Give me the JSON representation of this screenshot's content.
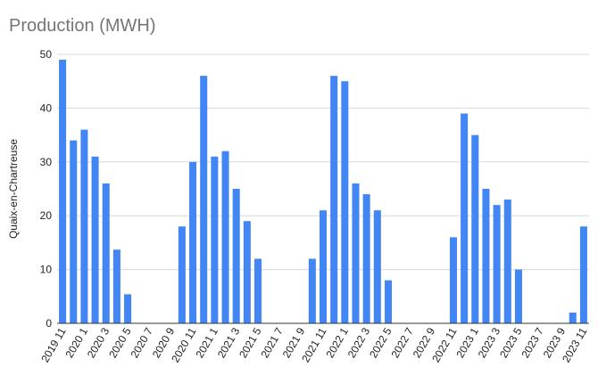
{
  "chart_data": {
    "type": "bar",
    "title": "Production (MWH)",
    "xlabel": "",
    "ylabel": "Quaix-en-Chartreuse",
    "ylim": [
      0,
      50
    ],
    "yticks": [
      0,
      10,
      20,
      30,
      40,
      50
    ],
    "grid": true,
    "bar_color": "#4285f4",
    "categories": [
      "2019 11",
      "2019 12",
      "2020 1",
      "2020 2",
      "2020 3",
      "2020 4",
      "2020 5",
      "2020 6",
      "2020 7",
      "2020 8",
      "2020 9",
      "2020 10",
      "2020 11",
      "2020 12",
      "2021 1",
      "2021 2",
      "2021 3",
      "2021 4",
      "2021 5",
      "2021 6",
      "2021 7",
      "2021 8",
      "2021 9",
      "2021 10",
      "2021 11",
      "2021 12",
      "2022 1",
      "2022 2",
      "2022 3",
      "2022 4",
      "2022 5",
      "2022 6",
      "2022 7",
      "2022 8",
      "2022 9",
      "2022 10",
      "2022 11",
      "2022 12",
      "2023 1",
      "2023 2",
      "2023 3",
      "2023 4",
      "2023 5",
      "2023 6",
      "2023 7",
      "2023 8",
      "2023 9",
      "2023 10",
      "2023 11"
    ],
    "x_tick_labels": [
      "2019 11",
      "2020 1",
      "2020 3",
      "2020 5",
      "2020 7",
      "2020 9",
      "2020 11",
      "2021 1",
      "2021 3",
      "2021 5",
      "2021 7",
      "2021 9",
      "2021 11",
      "2022 1",
      "2022 3",
      "2022 5",
      "2022 7",
      "2022 9",
      "2022 11",
      "2023 1",
      "2023 3",
      "2023 5",
      "2023 7",
      "2023 9",
      "2023 11"
    ],
    "values": [
      49,
      34,
      36,
      31,
      26,
      13.7,
      5.4,
      0,
      0,
      0,
      0,
      18,
      30,
      46,
      31,
      32,
      25,
      19,
      12,
      0,
      0,
      0,
      0,
      12,
      21,
      46,
      45,
      26,
      24,
      21,
      8,
      0,
      0,
      0,
      0,
      0,
      16,
      39,
      35,
      25,
      22,
      23,
      10,
      0,
      0,
      0,
      0,
      2,
      18
    ]
  }
}
